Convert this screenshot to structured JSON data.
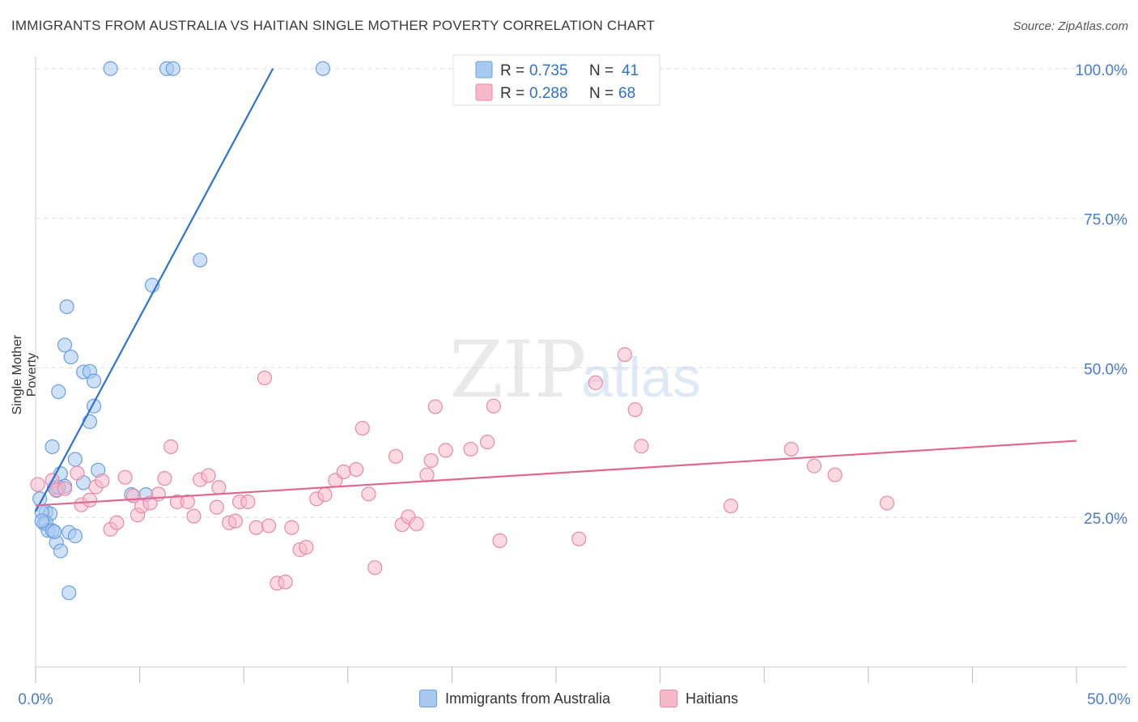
{
  "header": {
    "title": "IMMIGRANTS FROM AUSTRALIA VS HAITIAN SINGLE MOTHER POVERTY CORRELATION CHART",
    "source": "Source: ZipAtlas.com"
  },
  "watermark": {
    "zip": "ZIP",
    "atlas": "atlas"
  },
  "colors": {
    "blue_fill": "#a8c8f0",
    "blue_stroke": "#6a9fe0",
    "blue_line": "#2f72d4",
    "pink_fill": "#f6b9cc",
    "pink_stroke": "#e889a8",
    "pink_line": "#e06890",
    "tick_label": "#4a7cc9",
    "grid": "#dddddd"
  },
  "chart_data": {
    "type": "scatter",
    "title": "IMMIGRANTS FROM AUSTRALIA VS HAITIAN SINGLE MOTHER POVERTY CORRELATION CHART",
    "xlabel": "",
    "ylabel": "Single Mother Poverty",
    "xlim": [
      0,
      50
    ],
    "ylim": [
      0,
      102
    ],
    "x_tick_labels": [
      "0.0%",
      "50.0%"
    ],
    "y_ticks": [
      25,
      50,
      75,
      100
    ],
    "y_tick_labels": [
      "25.0%",
      "50.0%",
      "75.0%",
      "100.0%"
    ],
    "grid": true,
    "legend_placement": "top-center",
    "stats": [
      {
        "r_label": "R = ",
        "r": "0.735",
        "n_label": "N = ",
        "n": "41"
      },
      {
        "r_label": "R = ",
        "r": "0.288",
        "n_label": "N = ",
        "n": "68"
      }
    ],
    "series": [
      {
        "name": "Immigrants from Australia",
        "color": "blue",
        "trend": [
          [
            0.0,
            26.0
          ],
          [
            11.4,
            100.0
          ]
        ],
        "points": [
          [
            3.6,
            100
          ],
          [
            6.3,
            100
          ],
          [
            6.6,
            100
          ],
          [
            13.8,
            100
          ],
          [
            7.9,
            68
          ],
          [
            5.6,
            63.8
          ],
          [
            1.5,
            60.2
          ],
          [
            1.4,
            53.8
          ],
          [
            1.7,
            51.8
          ],
          [
            2.3,
            49.3
          ],
          [
            2.6,
            49.4
          ],
          [
            2.8,
            47.8
          ],
          [
            1.1,
            46
          ],
          [
            2.8,
            43.6
          ],
          [
            2.6,
            41
          ],
          [
            0.8,
            36.8
          ],
          [
            1.9,
            34.7
          ],
          [
            3.0,
            32.9
          ],
          [
            2.3,
            30.8
          ],
          [
            1.2,
            32.3
          ],
          [
            1.4,
            30.2
          ],
          [
            0.9,
            30
          ],
          [
            1.0,
            29.5
          ],
          [
            0.2,
            28.1
          ],
          [
            0.5,
            25.9
          ],
          [
            0.7,
            25.6
          ],
          [
            0.3,
            25.9
          ],
          [
            0.4,
            24
          ],
          [
            0.5,
            24.1
          ],
          [
            0.6,
            22.8
          ],
          [
            0.8,
            22.8
          ],
          [
            1.6,
            22.5
          ],
          [
            1.9,
            21.9
          ],
          [
            1.0,
            20.8
          ],
          [
            1.2,
            19.4
          ],
          [
            1.6,
            12.4
          ],
          [
            4.6,
            28.8
          ],
          [
            5.3,
            28.8
          ],
          [
            1.1,
            30.0
          ],
          [
            0.3,
            24.4
          ],
          [
            0.9,
            22.6
          ]
        ]
      },
      {
        "name": "Haitians",
        "color": "pink",
        "trend": [
          [
            0.0,
            27.0
          ],
          [
            50.0,
            37.8
          ]
        ],
        "points": [
          [
            0.1,
            30.5
          ],
          [
            0.8,
            31.2
          ],
          [
            1.0,
            29.6
          ],
          [
            1.4,
            29.8
          ],
          [
            2.0,
            32.4
          ],
          [
            2.2,
            27.1
          ],
          [
            2.6,
            27.9
          ],
          [
            2.9,
            30.1
          ],
          [
            3.2,
            31.1
          ],
          [
            3.6,
            23
          ],
          [
            3.9,
            24.1
          ],
          [
            4.3,
            31.7
          ],
          [
            4.7,
            28.6
          ],
          [
            4.9,
            25.4
          ],
          [
            5.1,
            26.9
          ],
          [
            5.5,
            27.4
          ],
          [
            5.9,
            28.9
          ],
          [
            6.2,
            31.5
          ],
          [
            6.5,
            36.8
          ],
          [
            6.8,
            27.6
          ],
          [
            7.3,
            27.6
          ],
          [
            7.6,
            25.2
          ],
          [
            7.9,
            31.3
          ],
          [
            8.3,
            32
          ],
          [
            8.7,
            26.7
          ],
          [
            8.8,
            30
          ],
          [
            9.3,
            24.1
          ],
          [
            9.6,
            24.4
          ],
          [
            9.8,
            27.6
          ],
          [
            10.2,
            27.6
          ],
          [
            10.6,
            23.3
          ],
          [
            11.0,
            48.3
          ],
          [
            11.2,
            23.6
          ],
          [
            11.6,
            14
          ],
          [
            12.0,
            14.2
          ],
          [
            12.3,
            23.3
          ],
          [
            12.7,
            19.6
          ],
          [
            13.0,
            20
          ],
          [
            13.5,
            28.1
          ],
          [
            13.9,
            28.8
          ],
          [
            14.4,
            31.2
          ],
          [
            14.8,
            32.6
          ],
          [
            15.4,
            33
          ],
          [
            15.7,
            39.9
          ],
          [
            16.0,
            28.9
          ],
          [
            16.3,
            16.6
          ],
          [
            17.3,
            35.2
          ],
          [
            17.6,
            23.8
          ],
          [
            17.9,
            25.1
          ],
          [
            18.3,
            23.9
          ],
          [
            18.8,
            32.1
          ],
          [
            19.2,
            43.5
          ],
          [
            19.7,
            36.2
          ],
          [
            20.9,
            36.4
          ],
          [
            21.7,
            37.6
          ],
          [
            22.0,
            43.6
          ],
          [
            22.3,
            21.1
          ],
          [
            26.1,
            21.4
          ],
          [
            26.9,
            47.5
          ],
          [
            28.3,
            52.2
          ],
          [
            28.8,
            43
          ],
          [
            29.1,
            36.9
          ],
          [
            33.4,
            26.9
          ],
          [
            36.3,
            36.4
          ],
          [
            37.4,
            33.6
          ],
          [
            38.4,
            32.1
          ],
          [
            40.9,
            27.4
          ],
          [
            19.0,
            34.5
          ]
        ]
      }
    ]
  }
}
